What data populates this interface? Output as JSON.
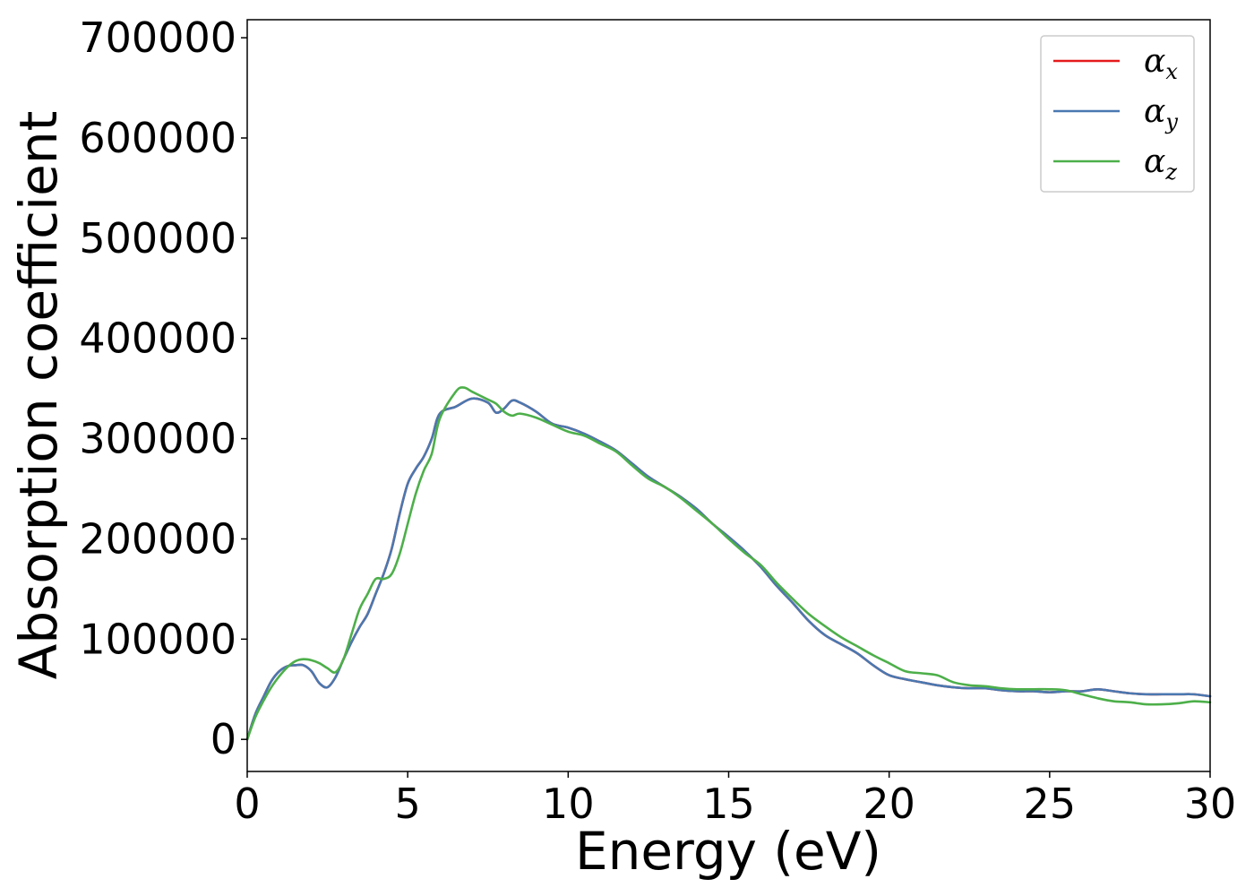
{
  "chart_data": {
    "type": "line",
    "title": "",
    "xlabel": "Energy (eV)",
    "ylabel": "Absorption coefficient",
    "xlim": [
      0,
      30
    ],
    "ylim": [
      -32000,
      718000
    ],
    "xticks": [
      0,
      5,
      10,
      15,
      20,
      25,
      30
    ],
    "yticks": [
      0,
      100000,
      200000,
      300000,
      400000,
      500000,
      600000,
      700000
    ],
    "grid": false,
    "legend_position": "top-right",
    "series": [
      {
        "name": "α",
        "subscript": "x",
        "color": "#e41a1c",
        "x": [
          0,
          0.25,
          0.5,
          0.75,
          1.0,
          1.25,
          1.5,
          1.75,
          2.0,
          2.25,
          2.5,
          2.75,
          3.0,
          3.25,
          3.5,
          3.75,
          4.0,
          4.25,
          4.5,
          4.75,
          5.0,
          5.25,
          5.5,
          5.75,
          6.0,
          6.5,
          7.0,
          7.5,
          7.75,
          8.0,
          8.25,
          8.5,
          9.0,
          9.5,
          10.0,
          10.5,
          11.0,
          11.5,
          12.0,
          12.5,
          13.0,
          13.5,
          14.0,
          14.5,
          15.0,
          15.5,
          16.0,
          16.5,
          17.0,
          17.5,
          18.0,
          18.5,
          19.0,
          19.5,
          20.0,
          20.5,
          21.0,
          21.5,
          22.0,
          22.5,
          23.0,
          23.5,
          24.0,
          24.5,
          25.0,
          25.5,
          26.0,
          26.5,
          27.0,
          27.5,
          28.0,
          28.5,
          29.0,
          29.5,
          30.0
        ],
        "y": [
          0,
          25000,
          42000,
          58000,
          68000,
          73000,
          74000,
          74000,
          68000,
          56000,
          52000,
          62000,
          80000,
          97000,
          112000,
          125000,
          145000,
          165000,
          190000,
          225000,
          255000,
          270000,
          282000,
          300000,
          325000,
          332000,
          340000,
          336000,
          326000,
          330000,
          338000,
          336000,
          327000,
          315000,
          311000,
          305000,
          297000,
          288000,
          275000,
          262000,
          252000,
          242000,
          230000,
          215000,
          202000,
          188000,
          172000,
          153000,
          136000,
          118000,
          104000,
          95000,
          86000,
          74000,
          64000,
          60000,
          57000,
          54000,
          52000,
          51000,
          51000,
          49000,
          48000,
          48000,
          47000,
          48000,
          48000,
          50000,
          48000,
          46000,
          45000,
          45000,
          45000,
          45000,
          43000
        ]
      },
      {
        "name": "α",
        "subscript": "y",
        "color": "#4a78b0",
        "x": [
          0,
          0.25,
          0.5,
          0.75,
          1.0,
          1.25,
          1.5,
          1.75,
          2.0,
          2.25,
          2.5,
          2.75,
          3.0,
          3.25,
          3.5,
          3.75,
          4.0,
          4.25,
          4.5,
          4.75,
          5.0,
          5.25,
          5.5,
          5.75,
          6.0,
          6.5,
          7.0,
          7.5,
          7.75,
          8.0,
          8.25,
          8.5,
          9.0,
          9.5,
          10.0,
          10.5,
          11.0,
          11.5,
          12.0,
          12.5,
          13.0,
          13.5,
          14.0,
          14.5,
          15.0,
          15.5,
          16.0,
          16.5,
          17.0,
          17.5,
          18.0,
          18.5,
          19.0,
          19.5,
          20.0,
          20.5,
          21.0,
          21.5,
          22.0,
          22.5,
          23.0,
          23.5,
          24.0,
          24.5,
          25.0,
          25.5,
          26.0,
          26.5,
          27.0,
          27.5,
          28.0,
          28.5,
          29.0,
          29.5,
          30.0
        ],
        "y": [
          0,
          25000,
          42000,
          58000,
          68000,
          73000,
          74000,
          74000,
          68000,
          56000,
          52000,
          62000,
          80000,
          97000,
          112000,
          125000,
          145000,
          165000,
          190000,
          225000,
          255000,
          270000,
          282000,
          300000,
          325000,
          332000,
          340000,
          336000,
          326000,
          330000,
          338000,
          336000,
          327000,
          315000,
          311000,
          305000,
          297000,
          288000,
          275000,
          262000,
          252000,
          242000,
          230000,
          215000,
          202000,
          188000,
          172000,
          153000,
          136000,
          118000,
          104000,
          95000,
          86000,
          74000,
          64000,
          60000,
          57000,
          54000,
          52000,
          51000,
          51000,
          49000,
          48000,
          48000,
          47000,
          48000,
          48000,
          50000,
          48000,
          46000,
          45000,
          45000,
          45000,
          45000,
          43000
        ]
      },
      {
        "name": "α",
        "subscript": "z",
        "color": "#4daf4a",
        "x": [
          0,
          0.25,
          0.5,
          0.75,
          1.0,
          1.25,
          1.5,
          1.75,
          2.0,
          2.25,
          2.5,
          2.75,
          3.0,
          3.25,
          3.5,
          3.75,
          4.0,
          4.25,
          4.5,
          4.75,
          5.0,
          5.25,
          5.5,
          5.75,
          6.0,
          6.5,
          6.75,
          7.0,
          7.5,
          7.75,
          8.0,
          8.25,
          8.5,
          9.0,
          9.5,
          10.0,
          10.5,
          11.0,
          11.5,
          12.0,
          12.5,
          13.0,
          13.5,
          14.0,
          14.5,
          15.0,
          15.5,
          16.0,
          16.5,
          17.0,
          17.5,
          18.0,
          18.5,
          19.0,
          19.5,
          20.0,
          20.5,
          21.0,
          21.5,
          22.0,
          22.5,
          23.0,
          23.5,
          24.0,
          24.5,
          25.0,
          25.5,
          26.0,
          26.5,
          27.0,
          27.5,
          28.0,
          28.5,
          29.0,
          29.5,
          30.0
        ],
        "y": [
          0,
          22000,
          38000,
          52000,
          63000,
          72000,
          78000,
          80000,
          79000,
          76000,
          71000,
          67000,
          80000,
          105000,
          130000,
          145000,
          160000,
          160000,
          165000,
          185000,
          215000,
          245000,
          268000,
          285000,
          320000,
          347000,
          351000,
          347000,
          339000,
          335000,
          327000,
          323000,
          325000,
          321000,
          314000,
          307000,
          303000,
          295000,
          287000,
          273000,
          260000,
          252000,
          241000,
          228000,
          215000,
          200000,
          186000,
          174000,
          156000,
          140000,
          125000,
          113000,
          102000,
          93000,
          84000,
          76000,
          68000,
          66000,
          64000,
          57000,
          54000,
          53000,
          51000,
          50000,
          50000,
          50000,
          49000,
          45000,
          41000,
          38000,
          37000,
          35000,
          35000,
          36000,
          38000,
          37000
        ]
      }
    ]
  }
}
